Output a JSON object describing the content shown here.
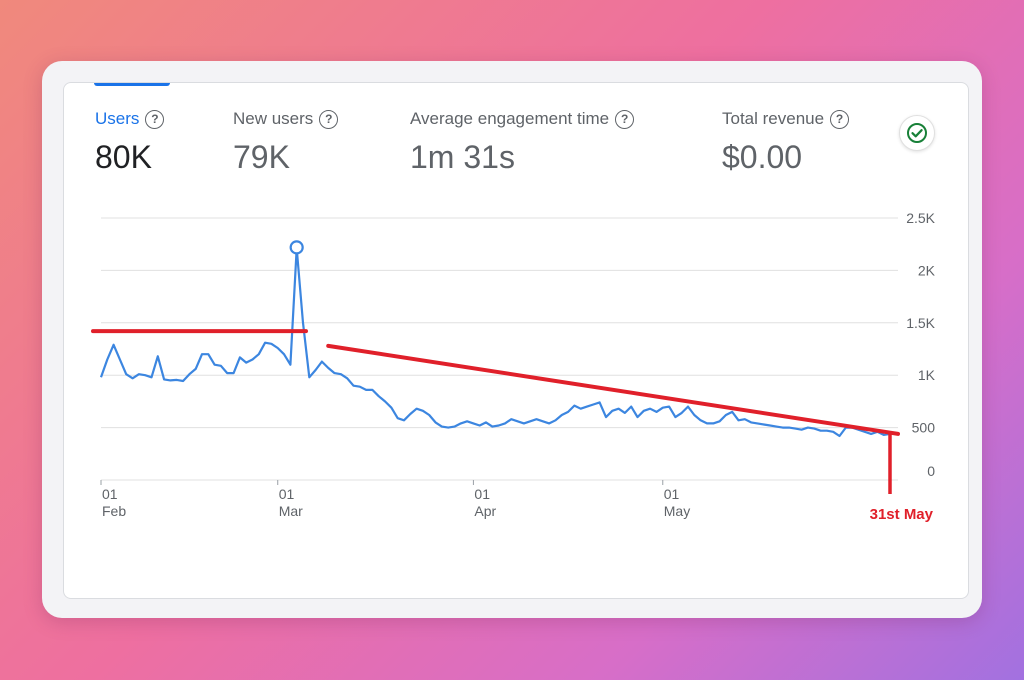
{
  "metrics": [
    {
      "label": "Users",
      "value": "80K",
      "help_icon": "question-circle-icon",
      "active": true
    },
    {
      "label": "New users",
      "value": "79K",
      "help_icon": "question-circle-icon",
      "active": false
    },
    {
      "label": "Average engagement time",
      "value": "1m 31s",
      "help_icon": "question-circle-icon",
      "active": false
    },
    {
      "label": "Total revenue",
      "value": "$0.00",
      "help_icon": "question-circle-icon",
      "active": false
    }
  ],
  "status_icon": "check-circle-icon",
  "colors": {
    "accent": "#1a73e8",
    "line": "#3c86e0",
    "annotation": "#e0202a",
    "grid": "#e0e0e0",
    "badge_check": "#188038"
  },
  "chart_data": {
    "type": "line",
    "series": [
      {
        "name": "Users",
        "values": [
          980,
          1150,
          1290,
          1150,
          1010,
          970,
          1010,
          1000,
          980,
          1180,
          960,
          950,
          955,
          945,
          1010,
          1060,
          1200,
          1200,
          1100,
          1090,
          1020,
          1020,
          1170,
          1120,
          1150,
          1200,
          1310,
          1300,
          1260,
          1200,
          1100,
          2210,
          1500,
          980,
          1050,
          1130,
          1070,
          1020,
          1010,
          970,
          900,
          890,
          860,
          860,
          800,
          750,
          690,
          590,
          570,
          630,
          680,
          660,
          620,
          550,
          510,
          500,
          510,
          540,
          560,
          540,
          520,
          550,
          510,
          520,
          540,
          580,
          560,
          540,
          560,
          580,
          560,
          540,
          570,
          620,
          650,
          710,
          680,
          700,
          720,
          740,
          600,
          660,
          680,
          640,
          700,
          600,
          660,
          680,
          650,
          690,
          700,
          600,
          640,
          700,
          620,
          570,
          540,
          540,
          560,
          620,
          650,
          570,
          580,
          550,
          540,
          530,
          520,
          510,
          500,
          500,
          490,
          480,
          500,
          490,
          470,
          470,
          460,
          420,
          500,
          500,
          480,
          460,
          440,
          460,
          430,
          440
        ]
      }
    ],
    "x_ticks": [
      {
        "day": "01",
        "month": "Feb",
        "index": 0
      },
      {
        "day": "01",
        "month": "Mar",
        "index": 28
      },
      {
        "day": "01",
        "month": "Apr",
        "index": 59
      },
      {
        "day": "01",
        "month": "May",
        "index": 89
      }
    ],
    "y_ticks": [
      "0",
      "500",
      "1K",
      "1.5K",
      "2K",
      "2.5K"
    ],
    "y_tick_values": [
      0,
      500,
      1000,
      1500,
      2000,
      2500
    ],
    "ylim": [
      0,
      2500
    ],
    "grid": true,
    "peak_marker_index": 31,
    "annotations": {
      "label": "31st May",
      "reference_line_value": 1420,
      "reference_line_span": [
        0,
        30
      ],
      "trend_line": {
        "from": [
          36,
          1280
        ],
        "to": [
          120,
          440
        ]
      }
    }
  }
}
